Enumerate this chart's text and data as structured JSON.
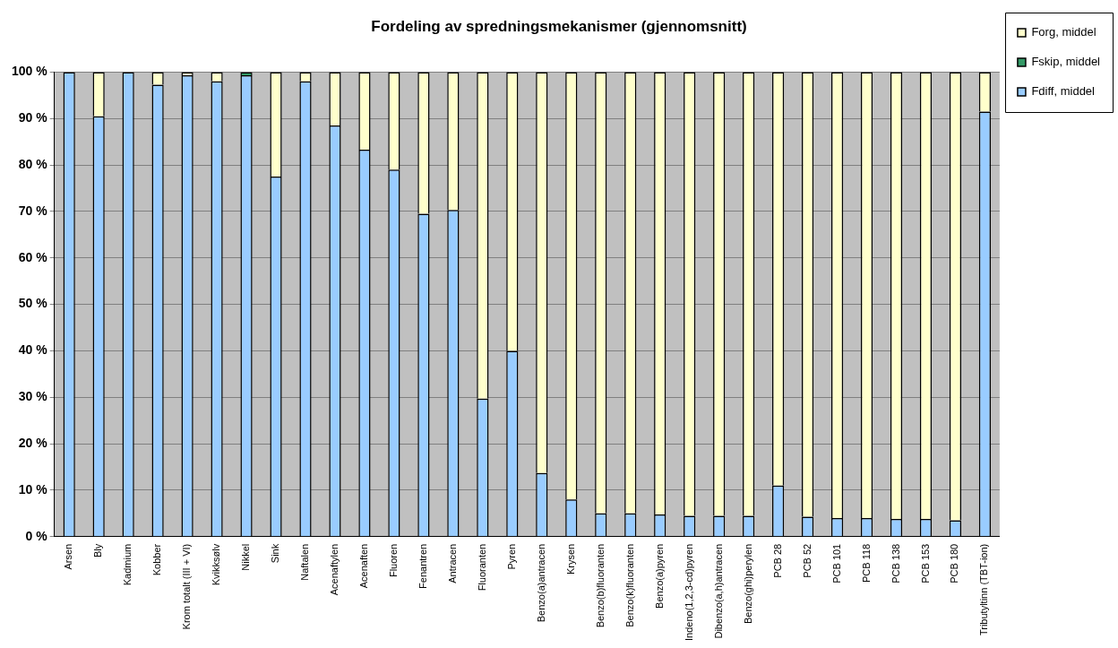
{
  "chart_data": {
    "type": "bar",
    "title": "Fordeling av spredningsmekanismer (gjennomsnitt)",
    "stacked": true,
    "legend": "right",
    "grid": "y",
    "categories": [
      "Arsen",
      "Bly",
      "Kadmium",
      "Kobber",
      "Krom totalt (III + VI)",
      "Kvikksølv",
      "Nikkel",
      "Sink",
      "Naftalen",
      "Acenaftylen",
      "Acenaften",
      "Fluoren",
      "Fenantren",
      "Antracen",
      "Fluoranten",
      "Pyren",
      "Benzo(a)antracen",
      "Krysen",
      "Benzo(b)fluoranten",
      "Benzo(k)fluoranten",
      "Benzo(a)pyren",
      "Indeno(1,2,3-cd)pyren",
      "Dibenzo(a,h)antracen",
      "Benzo(ghi)perylen",
      "PCB 28",
      "PCB 52",
      "PCB 101",
      "PCB 118",
      "PCB 138",
      "PCB 153",
      "PCB 180",
      "Tributyltinn (TBT-ion)"
    ],
    "series": [
      {
        "name": "Fdiff, middel",
        "color": "#99ccff",
        "values": [
          100,
          90.5,
          100,
          97.3,
          99.3,
          98,
          99.3,
          77.5,
          98,
          88.5,
          83.3,
          79,
          69.5,
          70.3,
          29.7,
          40,
          13.7,
          8,
          5,
          5,
          4.8,
          4.5,
          4.5,
          4.5,
          11,
          4.3,
          4,
          4,
          3.8,
          3.8,
          3.5,
          91.5
        ]
      },
      {
        "name": "Fskip, middel",
        "color": "#339966",
        "values": [
          0,
          0,
          0,
          0,
          0,
          0,
          0.7,
          0,
          0,
          0,
          0,
          0,
          0,
          0,
          0,
          0,
          0,
          0,
          0,
          0,
          0,
          0,
          0,
          0,
          0,
          0,
          0,
          0,
          0,
          0,
          0,
          0
        ]
      },
      {
        "name": "Forg, middel",
        "color": "#ffffcc",
        "values": [
          0,
          9.5,
          0,
          2.7,
          0.7,
          2,
          0,
          22.5,
          2,
          11.5,
          16.7,
          21,
          30.5,
          29.7,
          70.3,
          60,
          86.3,
          92,
          95,
          95,
          95.2,
          95.5,
          95.5,
          95.5,
          89,
          95.7,
          96,
          96,
          96.2,
          96.2,
          96.5,
          8.5
        ]
      }
    ],
    "ylim": [
      0,
      100
    ],
    "yticks": [
      {
        "value": 0,
        "label": "0 %"
      },
      {
        "value": 10,
        "label": "10 %"
      },
      {
        "value": 20,
        "label": "20 %"
      },
      {
        "value": 30,
        "label": "30 %"
      },
      {
        "value": 40,
        "label": "40 %"
      },
      {
        "value": 50,
        "label": "50 %"
      },
      {
        "value": 60,
        "label": "60 %"
      },
      {
        "value": 70,
        "label": "70 %"
      },
      {
        "value": 80,
        "label": "80 %"
      },
      {
        "value": 90,
        "label": "90 %"
      },
      {
        "value": 100,
        "label": "100 %"
      }
    ]
  }
}
